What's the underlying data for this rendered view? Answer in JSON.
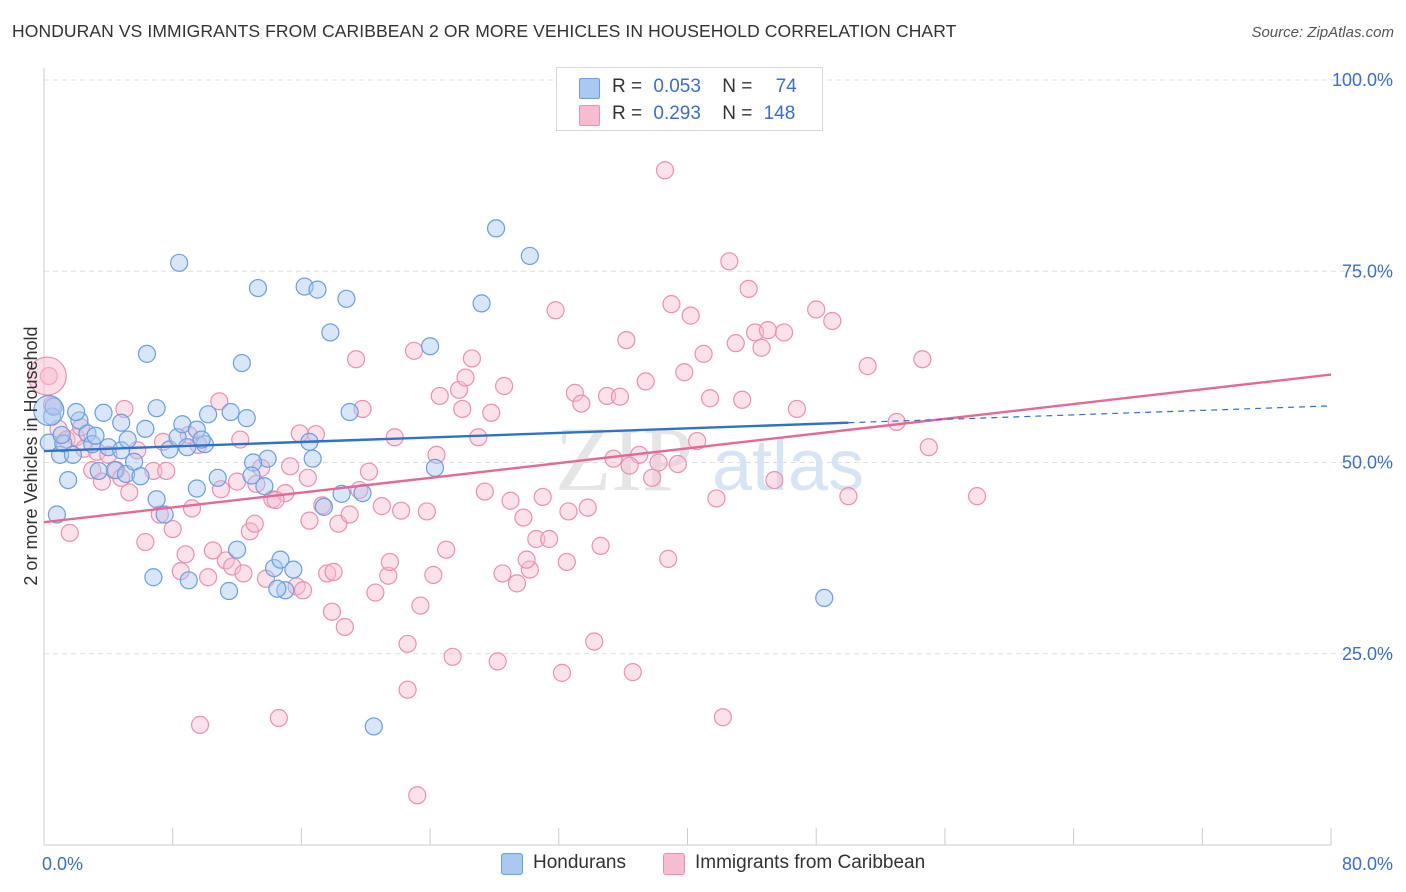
{
  "title": "HONDURAN VS IMMIGRANTS FROM CARIBBEAN 2 OR MORE VEHICLES IN HOUSEHOLD CORRELATION CHART",
  "source": "Source: ZipAtlas.com",
  "watermark": {
    "zip": "ZIP",
    "atlas": "atlas"
  },
  "colors": {
    "blue_fill": "#a9c8f0",
    "blue_stroke": "#6a9fe0",
    "blue_line": "#2f72c8",
    "pink_fill": "#f6bcd0",
    "pink_stroke": "#ec8fb0",
    "pink_line": "#e26a96",
    "axis_text": "#3a6fd0",
    "grid": "#dddddd"
  },
  "legend": {
    "rows": [
      {
        "r_label": "R =",
        "r_value": "0.053",
        "n_label": "N =",
        "n_value": "74",
        "color": "#a9c8f0",
        "border": "#6a9fe0"
      },
      {
        "r_label": "R =",
        "r_value": "0.293",
        "n_label": "N =",
        "n_value": "148",
        "color": "#f6bcd0",
        "border": "#ec8fb0"
      }
    ]
  },
  "bottom_legend": [
    {
      "label": "Hondurans",
      "color": "#a9c8f0",
      "border": "#6a9fe0"
    },
    {
      "label": "Immigrants from Caribbean",
      "color": "#f6bcd0",
      "border": "#ec8fb0"
    }
  ],
  "chart_data": {
    "type": "scatter",
    "title": "HONDURAN VS IMMIGRANTS FROM CARIBBEAN 2 OR MORE VEHICLES IN HOUSEHOLD CORRELATION CHART",
    "xlabel": "",
    "ylabel": "2 or more Vehicles in Household",
    "xlim": [
      0,
      80
    ],
    "ylim": [
      0,
      100
    ],
    "x_tick_labels": [
      {
        "value": 0,
        "label": "0.0%"
      },
      {
        "value": 80,
        "label": "80.0%"
      }
    ],
    "y_tick_labels": [
      {
        "value": 100,
        "label": "100.0%"
      },
      {
        "value": 75,
        "label": "75.0%"
      },
      {
        "value": 50,
        "label": "50.0%"
      },
      {
        "value": 25,
        "label": "25.0%"
      }
    ],
    "series": [
      {
        "name": "Hondurans",
        "r": 0.053,
        "n": 74,
        "trend": {
          "x": [
            0,
            50
          ],
          "y": [
            51.5,
            55.2
          ]
        },
        "trend_dashed": {
          "x": [
            50,
            80
          ],
          "y": [
            55.2,
            57.4
          ]
        },
        "points": [
          [
            0.3,
            52.6
          ],
          [
            0.5,
            56.0
          ],
          [
            0.6,
            57.3
          ],
          [
            1.0,
            51.0
          ],
          [
            1.2,
            52.5
          ],
          [
            1.5,
            47.7
          ],
          [
            1.8,
            51.0
          ],
          [
            2.2,
            55.5
          ],
          [
            2.7,
            53.8
          ],
          [
            3.0,
            52.4
          ],
          [
            3.2,
            53.5
          ],
          [
            4.0,
            52.0
          ],
          [
            4.4,
            49.0
          ],
          [
            4.8,
            51.6
          ],
          [
            5.1,
            48.5
          ],
          [
            5.6,
            50.1
          ],
          [
            6.3,
            54.4
          ],
          [
            6.8,
            35.0
          ],
          [
            7.0,
            45.2
          ],
          [
            7.5,
            43.2
          ],
          [
            7.8,
            51.7
          ],
          [
            8.3,
            53.3
          ],
          [
            8.6,
            55.0
          ],
          [
            9.0,
            34.6
          ],
          [
            9.5,
            46.6
          ],
          [
            10.2,
            56.3
          ],
          [
            10.8,
            48.0
          ],
          [
            11.5,
            33.2
          ],
          [
            12.0,
            38.6
          ],
          [
            12.3,
            63.0
          ],
          [
            12.6,
            55.8
          ],
          [
            13.3,
            72.8
          ],
          [
            13.7,
            46.9
          ],
          [
            13.9,
            50.5
          ],
          [
            14.3,
            36.2
          ],
          [
            14.7,
            37.3
          ],
          [
            15.0,
            33.3
          ],
          [
            15.5,
            36.0
          ],
          [
            16.2,
            73.0
          ],
          [
            16.7,
            50.5
          ],
          [
            17.0,
            72.6
          ],
          [
            17.4,
            44.2
          ],
          [
            17.8,
            67.0
          ],
          [
            18.5,
            45.9
          ],
          [
            18.8,
            71.4
          ],
          [
            19.0,
            56.6
          ],
          [
            19.8,
            46.0
          ],
          [
            20.5,
            15.5
          ],
          [
            24.0,
            65.2
          ],
          [
            24.3,
            49.3
          ],
          [
            27.2,
            70.8
          ],
          [
            28.1,
            80.6
          ],
          [
            30.2,
            77.0
          ],
          [
            48.5,
            32.3
          ],
          [
            8.4,
            76.1
          ],
          [
            6.4,
            64.2
          ],
          [
            5.2,
            53.0
          ],
          [
            3.7,
            56.5
          ],
          [
            2.0,
            56.6
          ],
          [
            1.1,
            53.6
          ],
          [
            0.8,
            43.2
          ],
          [
            4.8,
            55.2
          ],
          [
            8.9,
            52.0
          ],
          [
            10.0,
            52.4
          ],
          [
            11.6,
            56.6
          ],
          [
            13.0,
            50.0
          ],
          [
            9.5,
            54.3
          ],
          [
            16.5,
            52.7
          ],
          [
            12.9,
            48.3
          ],
          [
            6.0,
            48.2
          ],
          [
            7.0,
            57.1
          ],
          [
            14.5,
            33.5
          ],
          [
            9.8,
            53.0
          ],
          [
            3.4,
            48.9
          ]
        ]
      },
      {
        "name": "Immigrants from Caribbean",
        "r": 0.293,
        "n": 148,
        "trend": {
          "x": [
            0,
            80
          ],
          "y": [
            42.2,
            61.5
          ]
        },
        "points": [
          [
            0.3,
            61.3
          ],
          [
            0.5,
            57.5
          ],
          [
            0.9,
            54.4
          ],
          [
            1.4,
            53.0
          ],
          [
            1.6,
            40.8
          ],
          [
            2.0,
            53.3
          ],
          [
            2.5,
            51.8
          ],
          [
            3.0,
            49.0
          ],
          [
            3.3,
            51.4
          ],
          [
            3.6,
            47.5
          ],
          [
            4.0,
            51.0
          ],
          [
            4.5,
            49.0
          ],
          [
            4.8,
            48.0
          ],
          [
            5.3,
            46.1
          ],
          [
            5.8,
            51.6
          ],
          [
            6.3,
            39.6
          ],
          [
            6.8,
            48.9
          ],
          [
            7.2,
            43.2
          ],
          [
            7.6,
            48.9
          ],
          [
            8.0,
            41.3
          ],
          [
            8.5,
            35.8
          ],
          [
            8.8,
            38.0
          ],
          [
            9.2,
            44.0
          ],
          [
            9.7,
            15.7
          ],
          [
            10.2,
            35.0
          ],
          [
            10.5,
            38.5
          ],
          [
            10.9,
            58.0
          ],
          [
            11.3,
            37.2
          ],
          [
            11.7,
            36.4
          ],
          [
            12.0,
            47.5
          ],
          [
            12.4,
            35.5
          ],
          [
            12.8,
            41.0
          ],
          [
            13.2,
            47.2
          ],
          [
            13.5,
            49.3
          ],
          [
            13.8,
            34.8
          ],
          [
            14.2,
            45.2
          ],
          [
            14.6,
            16.6
          ],
          [
            15.0,
            46.0
          ],
          [
            15.3,
            49.5
          ],
          [
            15.7,
            33.8
          ],
          [
            16.1,
            33.3
          ],
          [
            16.5,
            42.4
          ],
          [
            16.9,
            53.7
          ],
          [
            17.3,
            44.4
          ],
          [
            17.6,
            35.5
          ],
          [
            17.9,
            30.5
          ],
          [
            18.3,
            42.0
          ],
          [
            18.7,
            28.5
          ],
          [
            19.0,
            43.2
          ],
          [
            19.4,
            63.5
          ],
          [
            19.8,
            57.0
          ],
          [
            20.2,
            48.8
          ],
          [
            20.6,
            33.0
          ],
          [
            21.0,
            44.3
          ],
          [
            21.4,
            35.2
          ],
          [
            21.8,
            53.3
          ],
          [
            22.2,
            43.7
          ],
          [
            22.6,
            26.3
          ],
          [
            23.0,
            64.6
          ],
          [
            23.4,
            31.3
          ],
          [
            23.8,
            43.6
          ],
          [
            24.2,
            35.3
          ],
          [
            24.6,
            58.7
          ],
          [
            25.0,
            38.6
          ],
          [
            25.4,
            24.6
          ],
          [
            25.8,
            59.5
          ],
          [
            26.2,
            61.1
          ],
          [
            26.6,
            63.6
          ],
          [
            27.0,
            53.3
          ],
          [
            27.4,
            46.2
          ],
          [
            27.8,
            56.5
          ],
          [
            28.2,
            24.0
          ],
          [
            28.6,
            60.0
          ],
          [
            29.0,
            45.0
          ],
          [
            29.4,
            34.2
          ],
          [
            29.8,
            42.8
          ],
          [
            30.2,
            36.0
          ],
          [
            30.6,
            40.0
          ],
          [
            31.0,
            45.5
          ],
          [
            31.4,
            40.0
          ],
          [
            31.8,
            69.9
          ],
          [
            32.2,
            22.5
          ],
          [
            32.6,
            43.6
          ],
          [
            33.0,
            59.1
          ],
          [
            33.4,
            57.7
          ],
          [
            33.8,
            44.1
          ],
          [
            34.2,
            26.6
          ],
          [
            34.6,
            39.1
          ],
          [
            35.0,
            58.7
          ],
          [
            35.4,
            50.5
          ],
          [
            35.8,
            58.6
          ],
          [
            36.2,
            66.0
          ],
          [
            36.6,
            22.6
          ],
          [
            37.0,
            51.0
          ],
          [
            37.4,
            60.6
          ],
          [
            37.8,
            48.0
          ],
          [
            38.2,
            50.0
          ],
          [
            38.6,
            88.2
          ],
          [
            39.0,
            70.7
          ],
          [
            39.4,
            49.8
          ],
          [
            39.8,
            61.8
          ],
          [
            40.2,
            69.2
          ],
          [
            40.6,
            52.8
          ],
          [
            41.0,
            64.2
          ],
          [
            41.4,
            58.4
          ],
          [
            41.8,
            45.3
          ],
          [
            42.2,
            16.7
          ],
          [
            42.6,
            76.3
          ],
          [
            43.0,
            65.6
          ],
          [
            43.4,
            58.2
          ],
          [
            43.8,
            72.7
          ],
          [
            44.2,
            67.0
          ],
          [
            44.6,
            65.0
          ],
          [
            45.0,
            67.3
          ],
          [
            45.4,
            47.7
          ],
          [
            46.0,
            67.0
          ],
          [
            46.8,
            57.0
          ],
          [
            48.0,
            70.0
          ],
          [
            49.0,
            68.5
          ],
          [
            50.0,
            45.6
          ],
          [
            51.2,
            62.6
          ],
          [
            53.0,
            55.3
          ],
          [
            54.6,
            63.5
          ],
          [
            55.0,
            52.0
          ],
          [
            58.0,
            45.6
          ],
          [
            2.3,
            54.6
          ],
          [
            5.0,
            57.0
          ],
          [
            7.4,
            52.7
          ],
          [
            9.6,
            52.3
          ],
          [
            12.2,
            53.0
          ],
          [
            14.4,
            45.1
          ],
          [
            16.4,
            48.0
          ],
          [
            19.6,
            46.4
          ],
          [
            21.5,
            37.0
          ],
          [
            22.6,
            20.3
          ],
          [
            23.2,
            6.5
          ],
          [
            24.4,
            51.0
          ],
          [
            26.0,
            57.0
          ],
          [
            28.5,
            35.5
          ],
          [
            30.0,
            37.3
          ],
          [
            32.5,
            37.0
          ],
          [
            36.4,
            49.6
          ],
          [
            38.8,
            37.4
          ],
          [
            9.0,
            53.6
          ],
          [
            11.0,
            46.5
          ],
          [
            13.1,
            42.0
          ],
          [
            15.9,
            53.8
          ],
          [
            18.0,
            35.7
          ]
        ]
      }
    ]
  }
}
